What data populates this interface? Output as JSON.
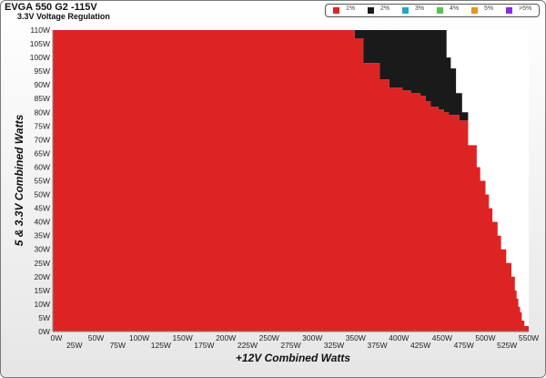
{
  "chart_data": {
    "type": "heatmap",
    "title": "EVGA 550 G2 -115V",
    "subtitle": "3.3V Voltage Regulation",
    "xlabel": "+12V Combined Watts",
    "ylabel": "5 & 3.3V Combined Watts",
    "xlim": [
      0,
      550
    ],
    "ylim": [
      0,
      110
    ],
    "x_ticks": [
      "0W",
      "25W",
      "50W",
      "75W",
      "100W",
      "125W",
      "150W",
      "175W",
      "200W",
      "225W",
      "250W",
      "275W",
      "300W",
      "325W",
      "350W",
      "375W",
      "400W",
      "425W",
      "450W",
      "475W",
      "500W",
      "525W",
      "550W"
    ],
    "y_ticks": [
      "0W",
      "5W",
      "10W",
      "15W",
      "20W",
      "25W",
      "30W",
      "35W",
      "40W",
      "45W",
      "50W",
      "55W",
      "60W",
      "65W",
      "70W",
      "75W",
      "80W",
      "85W",
      "90W",
      "95W",
      "100W",
      "105W",
      "110W"
    ],
    "legend": [
      {
        "label": "1%",
        "color": "#dd2424"
      },
      {
        "label": "2%",
        "color": "#1a1a1a"
      },
      {
        "label": "3%",
        "color": "#27a3c8"
      },
      {
        "label": "4%",
        "color": "#5cbf5c"
      },
      {
        "label": "5%",
        "color": "#e8931f"
      },
      {
        "label": ">5%",
        "color": "#8a2be2"
      }
    ],
    "legend_position": "top-right",
    "grid": false,
    "regions": [
      {
        "label": "1%",
        "color": "#dd2424",
        "boundary": [
          [
            0,
            0
          ],
          [
            550,
            0
          ],
          [
            550,
            2
          ],
          [
            545,
            2
          ],
          [
            545,
            4
          ],
          [
            542,
            4
          ],
          [
            542,
            7
          ],
          [
            540,
            7
          ],
          [
            540,
            9
          ],
          [
            538,
            9
          ],
          [
            538,
            12
          ],
          [
            536,
            12
          ],
          [
            536,
            15
          ],
          [
            534,
            15
          ],
          [
            534,
            20
          ],
          [
            530,
            20
          ],
          [
            530,
            25
          ],
          [
            524,
            25
          ],
          [
            524,
            30
          ],
          [
            518,
            30
          ],
          [
            518,
            35
          ],
          [
            514,
            35
          ],
          [
            514,
            40
          ],
          [
            508,
            40
          ],
          [
            508,
            45
          ],
          [
            504,
            45
          ],
          [
            504,
            50
          ],
          [
            500,
            50
          ],
          [
            500,
            55
          ],
          [
            494,
            55
          ],
          [
            494,
            60
          ],
          [
            490,
            60
          ],
          [
            490,
            68
          ],
          [
            480,
            68
          ],
          [
            480,
            77
          ],
          [
            470,
            77
          ],
          [
            470,
            79
          ],
          [
            458,
            79
          ],
          [
            458,
            80
          ],
          [
            452,
            80
          ],
          [
            452,
            81
          ],
          [
            446,
            81
          ],
          [
            446,
            82
          ],
          [
            437,
            82
          ],
          [
            437,
            84
          ],
          [
            431,
            84
          ],
          [
            431,
            86
          ],
          [
            425,
            86
          ],
          [
            425,
            87
          ],
          [
            414,
            87
          ],
          [
            414,
            88
          ],
          [
            404,
            88
          ],
          [
            404,
            89
          ],
          [
            389,
            89
          ],
          [
            389,
            92
          ],
          [
            378,
            92
          ],
          [
            378,
            98
          ],
          [
            359,
            98
          ],
          [
            359,
            107
          ],
          [
            349,
            107
          ],
          [
            349,
            110
          ],
          [
            0,
            110
          ]
        ]
      },
      {
        "label": "2%",
        "color": "#1a1a1a",
        "boundary": [
          [
            359,
            98
          ],
          [
            378,
            98
          ],
          [
            378,
            92
          ],
          [
            389,
            92
          ],
          [
            389,
            89
          ],
          [
            404,
            89
          ],
          [
            404,
            88
          ],
          [
            414,
            88
          ],
          [
            414,
            87
          ],
          [
            425,
            87
          ],
          [
            425,
            86
          ],
          [
            431,
            86
          ],
          [
            431,
            84
          ],
          [
            437,
            84
          ],
          [
            437,
            82
          ],
          [
            446,
            82
          ],
          [
            446,
            81
          ],
          [
            452,
            81
          ],
          [
            452,
            80
          ],
          [
            458,
            80
          ],
          [
            458,
            79
          ],
          [
            470,
            79
          ],
          [
            470,
            77
          ],
          [
            480,
            77
          ],
          [
            480,
            80
          ],
          [
            473,
            80
          ],
          [
            473,
            87
          ],
          [
            466,
            87
          ],
          [
            466,
            96
          ],
          [
            460,
            96
          ],
          [
            460,
            100
          ],
          [
            455,
            100
          ],
          [
            455,
            110
          ],
          [
            349,
            110
          ],
          [
            349,
            107
          ],
          [
            359,
            107
          ]
        ]
      }
    ]
  }
}
